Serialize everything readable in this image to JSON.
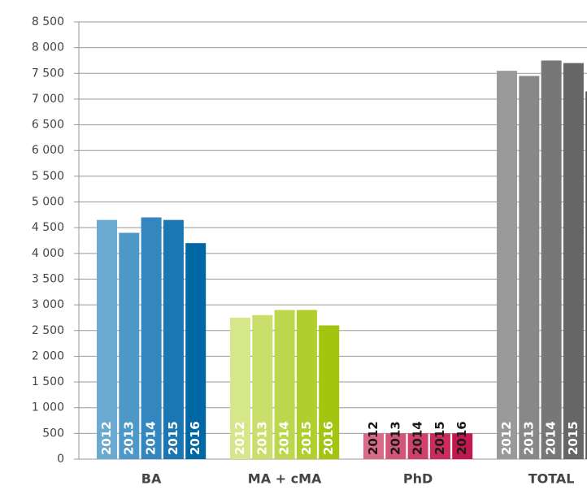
{
  "chart_data": {
    "type": "bar",
    "categories": [
      "BA",
      "MA + cMA",
      "PhD",
      "TOTAL"
    ],
    "series": [
      {
        "name": "2012",
        "colors": [
          "#6aaad0",
          "#d6e68a",
          "#d96a88",
          "#9a9a9a"
        ],
        "values": [
          4650,
          2750,
          500,
          7550
        ]
      },
      {
        "name": "2013",
        "colors": [
          "#4d98c7",
          "#c9de6b",
          "#d4557a",
          "#888888"
        ],
        "values": [
          4400,
          2800,
          500,
          7450
        ]
      },
      {
        "name": "2014",
        "colors": [
          "#3486be",
          "#bcd64d",
          "#ce416b",
          "#777777"
        ],
        "values": [
          4700,
          2900,
          500,
          7750
        ]
      },
      {
        "name": "2015",
        "colors": [
          "#1b77b2",
          "#b0ce2e",
          "#c92c5d",
          "#666666"
        ],
        "values": [
          4650,
          2900,
          500,
          7700
        ]
      },
      {
        "name": "2016",
        "colors": [
          "#0067a5",
          "#a3c50f",
          "#c3184e",
          "#555555"
        ],
        "values": [
          4200,
          2600,
          500,
          7150
        ]
      }
    ],
    "label_colors": [
      "#ffffff",
      "#ffffff",
      "#1a1a1a",
      "#ffffff"
    ],
    "ylim": [
      0,
      8500
    ],
    "yticks": [
      0,
      500,
      {
        "value": 1000,
        "label": "1 000"
      },
      {
        "value": 1500,
        "label": "1 500"
      },
      {
        "value": 2000,
        "label": "2 000"
      },
      {
        "value": 2500,
        "label": "2 500"
      },
      {
        "value": 3000,
        "label": "3 000"
      },
      {
        "value": 3500,
        "label": "3 500"
      },
      {
        "value": 4000,
        "label": "4 000"
      },
      {
        "value": 4500,
        "label": "4 500"
      },
      {
        "value": 5000,
        "label": "5 000"
      },
      {
        "value": 5500,
        "label": "5 500"
      },
      {
        "value": 6000,
        "label": "6 000"
      },
      {
        "value": 6500,
        "label": "6 500"
      },
      {
        "value": 7000,
        "label": "7 000"
      },
      {
        "value": 7500,
        "label": "7 500"
      },
      {
        "value": 8000,
        "label": "8 000"
      },
      {
        "value": 8500,
        "label": "8 500"
      }
    ],
    "grid": true
  }
}
